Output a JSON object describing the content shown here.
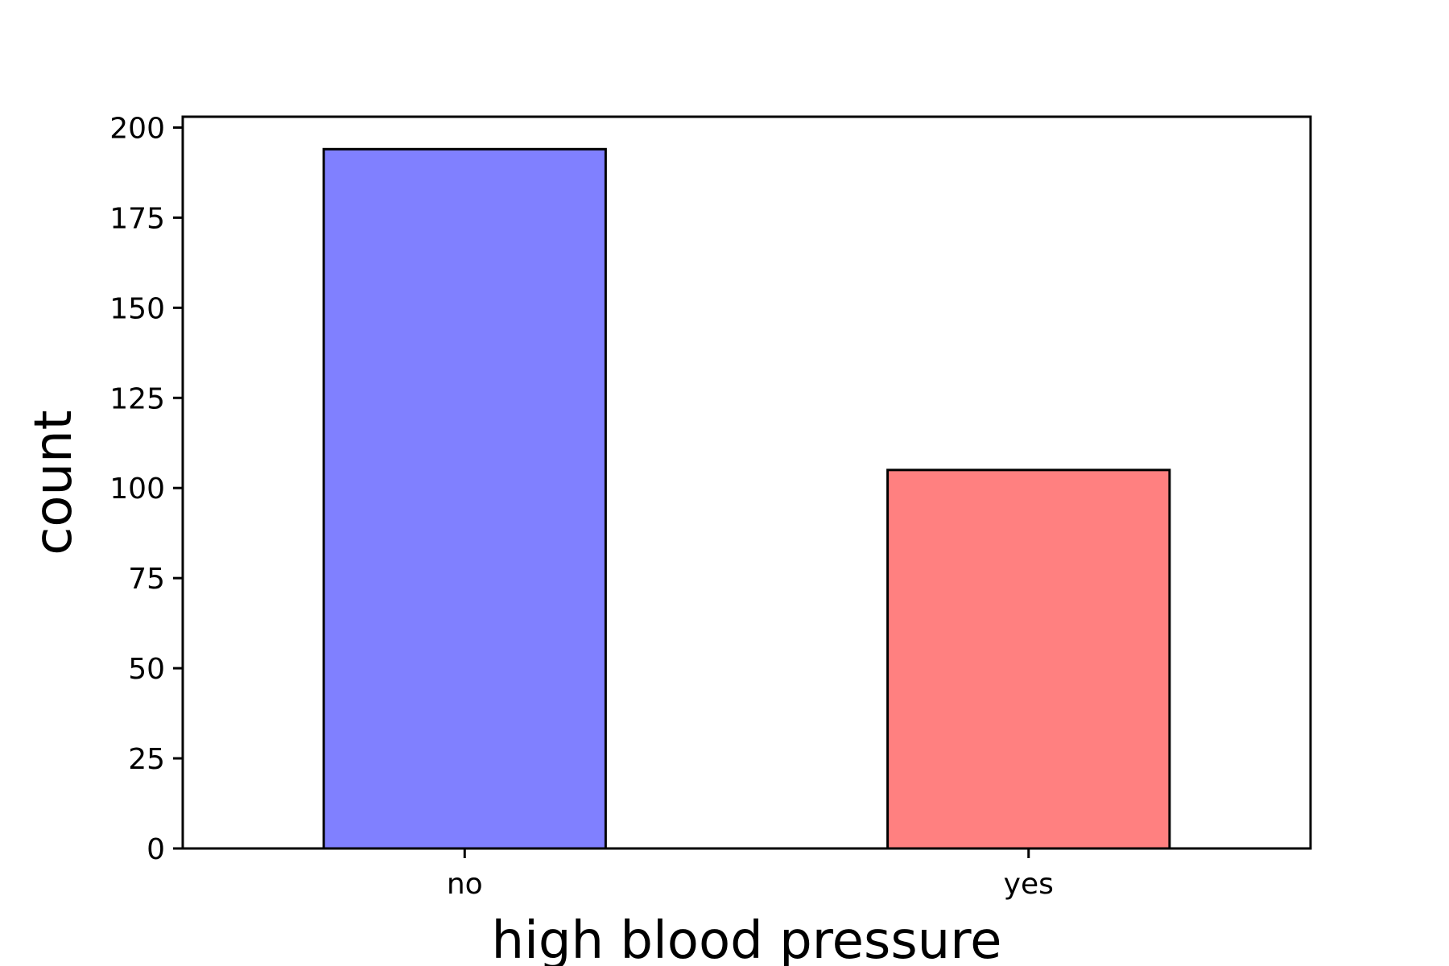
{
  "chart_data": {
    "type": "bar",
    "title": "",
    "xlabel": "high blood pressure",
    "ylabel": "count",
    "categories": [
      "no",
      "yes"
    ],
    "values": [
      194,
      105
    ],
    "bar_colors": [
      "#8080ff",
      "#ff8080"
    ],
    "edge_color": "#000000",
    "ylim": [
      0,
      203
    ],
    "yticks": [
      0,
      25,
      50,
      75,
      100,
      125,
      150,
      175,
      200
    ],
    "grid": false,
    "legend": "none"
  }
}
